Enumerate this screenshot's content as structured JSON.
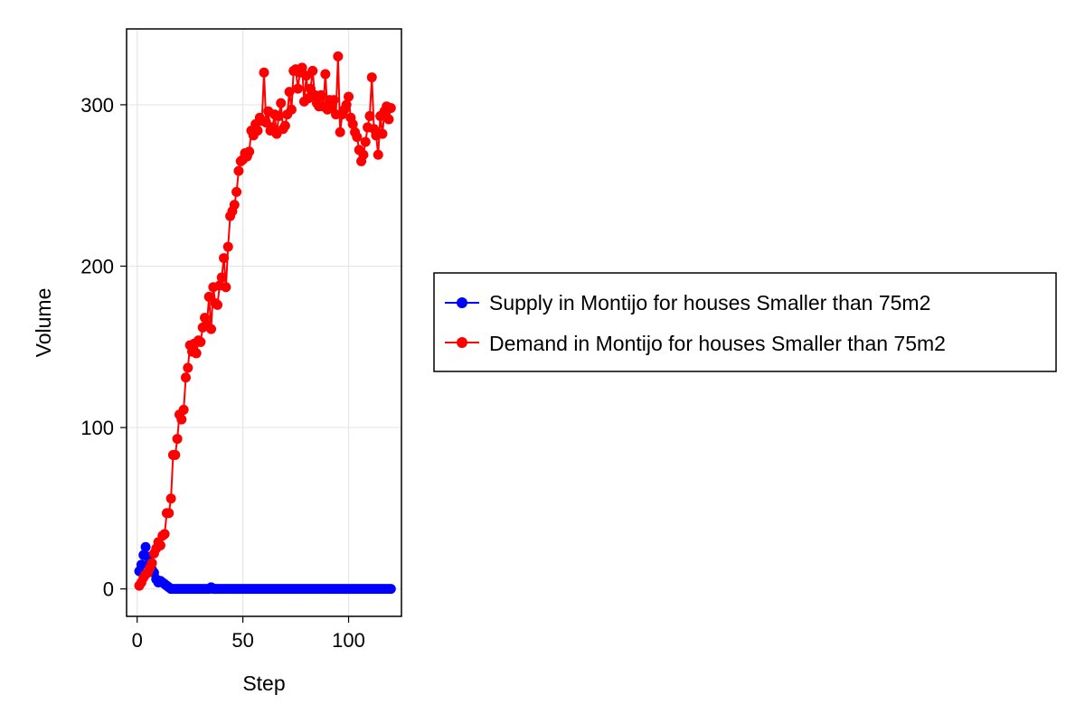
{
  "chart_data": {
    "type": "line",
    "xlabel": "Step",
    "ylabel": "Volume",
    "xlim": [
      -5,
      125
    ],
    "ylim": [
      -17,
      347
    ],
    "x_ticks": [
      0,
      50,
      100
    ],
    "y_ticks": [
      0,
      100,
      200,
      300
    ],
    "x_tick_labels": [
      "0",
      "50",
      "100"
    ],
    "y_tick_labels": [
      "0",
      "100",
      "200",
      "300"
    ],
    "grid": true,
    "legend_position": "right",
    "x": [
      1,
      2,
      3,
      4,
      5,
      6,
      7,
      8,
      9,
      10,
      11,
      12,
      13,
      14,
      15,
      16,
      17,
      18,
      19,
      20,
      21,
      22,
      23,
      24,
      25,
      26,
      27,
      28,
      29,
      30,
      31,
      32,
      33,
      34,
      35,
      36,
      37,
      38,
      39,
      40,
      41,
      42,
      43,
      44,
      45,
      46,
      47,
      48,
      49,
      50,
      51,
      52,
      53,
      54,
      55,
      56,
      57,
      58,
      59,
      60,
      61,
      62,
      63,
      64,
      65,
      66,
      67,
      68,
      69,
      70,
      71,
      72,
      73,
      74,
      75,
      76,
      77,
      78,
      79,
      80,
      81,
      82,
      83,
      84,
      85,
      86,
      87,
      88,
      89,
      90,
      91,
      92,
      93,
      94,
      95,
      96,
      97,
      98,
      99,
      100,
      101,
      102,
      103,
      104,
      105,
      106,
      107,
      108,
      109,
      110,
      111,
      112,
      113,
      114,
      115,
      116,
      117,
      118,
      119,
      120
    ],
    "series": [
      {
        "name": "Supply in Montijo for houses Smaller than 75m2",
        "color": "#0000ff",
        "values": [
          11,
          15,
          21,
          26,
          20,
          17,
          12,
          10,
          6,
          4,
          5,
          4,
          3,
          2,
          1,
          0,
          0,
          0,
          0,
          0,
          0,
          0,
          0,
          0,
          0,
          0,
          0,
          0,
          0,
          0,
          0,
          0,
          0,
          0,
          1,
          0,
          0,
          0,
          0,
          0,
          0,
          0,
          0,
          0,
          0,
          0,
          0,
          0,
          0,
          0,
          0,
          0,
          0,
          0,
          0,
          0,
          0,
          0,
          0,
          0,
          0,
          0,
          0,
          0,
          0,
          0,
          0,
          0,
          0,
          0,
          0,
          0,
          0,
          0,
          0,
          0,
          0,
          0,
          0,
          0,
          0,
          0,
          0,
          0,
          0,
          0,
          0,
          0,
          0,
          0,
          0,
          0,
          0,
          0,
          0,
          0,
          0,
          0,
          0,
          0,
          0,
          0,
          0,
          0,
          0,
          0,
          0,
          0,
          0,
          0,
          0,
          0,
          0,
          0,
          0,
          0,
          0,
          0,
          0,
          0
        ]
      },
      {
        "name": "Demand in Montijo for houses Smaller than 75m2",
        "color": "#ff0000",
        "values": [
          2,
          4,
          7,
          9,
          10,
          13,
          16,
          22,
          25,
          29,
          27,
          33,
          34,
          47,
          47,
          56,
          83,
          83,
          93,
          108,
          105,
          111,
          131,
          137,
          151,
          147,
          152,
          146,
          154,
          153,
          162,
          168,
          164,
          181,
          161,
          187,
          177,
          176,
          188,
          193,
          205,
          187,
          212,
          231,
          234,
          238,
          246,
          259,
          265,
          266,
          270,
          268,
          271,
          284,
          281,
          288,
          284,
          292,
          290,
          320,
          289,
          296,
          284,
          286,
          294,
          282,
          293,
          301,
          285,
          287,
          294,
          308,
          297,
          321,
          322,
          310,
          320,
          323,
          302,
          318,
          304,
          310,
          321,
          306,
          301,
          299,
          306,
          299,
          319,
          297,
          303,
          298,
          303,
          294,
          330,
          283,
          294,
          297,
          300,
          305,
          292,
          288,
          283,
          280,
          272,
          265,
          269,
          277,
          286,
          293,
          317,
          285,
          281,
          269,
          293,
          282,
          296,
          299,
          291,
          298
        ]
      }
    ]
  }
}
